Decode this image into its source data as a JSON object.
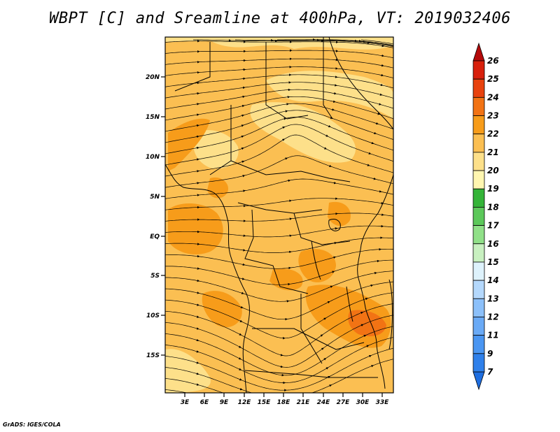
{
  "title": "WBPT [C] and Sreamline at 400hPa, VT: 2019032406",
  "credit": "GrADS: IGES/COLA",
  "map": {
    "lat_labels": [
      "20N",
      "15N",
      "10N",
      "5N",
      "EQ",
      "5S",
      "10S",
      "15S"
    ],
    "lon_labels": [
      "3E",
      "6E",
      "9E",
      "12E",
      "15E",
      "18E",
      "21E",
      "24E",
      "27E",
      "30E",
      "33E"
    ]
  },
  "colorbar": {
    "labels": [
      "7",
      "9",
      "11",
      "12",
      "13",
      "14",
      "15",
      "16",
      "17",
      "18",
      "19",
      "20",
      "21",
      "22",
      "23",
      "24",
      "25",
      "26"
    ],
    "colors": [
      "#1e6ee0",
      "#2f80ea",
      "#4a96f2",
      "#6aaaf6",
      "#8cc0fa",
      "#b4d8fc",
      "#def2fc",
      "#c8f0c0",
      "#90e088",
      "#5cc85a",
      "#34b438",
      "#fff6b0",
      "#fde08a",
      "#fbbf52",
      "#f79c1a",
      "#f27314",
      "#e8420e",
      "#d8200c",
      "#b40a0a"
    ]
  }
}
